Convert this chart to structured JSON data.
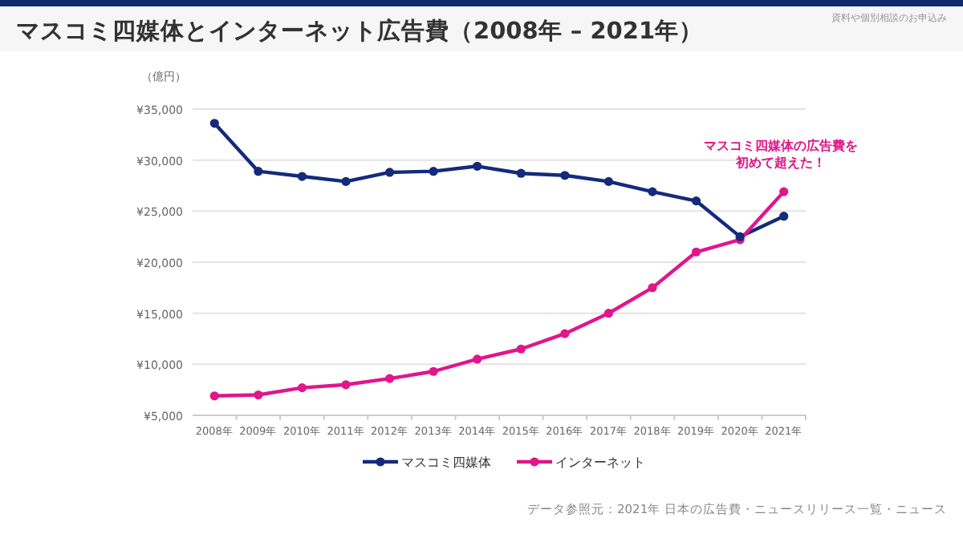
{
  "chart_data": {
    "type": "line",
    "title": "マスコミ四媒体とインターネット広告費（2008年 – 2021年）",
    "ylabel": "（億円）",
    "categories": [
      "2008年",
      "2009年",
      "2010年",
      "2011年",
      "2012年",
      "2013年",
      "2014年",
      "2015年",
      "2016年",
      "2017年",
      "2018年",
      "2019年",
      "2020年",
      "2021年"
    ],
    "series": [
      {
        "name": "マスコミ四媒体",
        "color": "#142a7c",
        "values": [
          33600,
          28900,
          28400,
          27900,
          28800,
          28900,
          29400,
          28700,
          28500,
          27900,
          26900,
          26000,
          22500,
          24500
        ]
      },
      {
        "name": "インターネット",
        "color": "#e0168c",
        "values": [
          6900,
          7000,
          7700,
          8000,
          8600,
          9300,
          10500,
          11500,
          13000,
          15000,
          17500,
          21000,
          22200,
          26900
        ]
      }
    ],
    "ylim": [
      5000,
      35000
    ],
    "yticks": [
      {
        "value": 5000,
        "label": "¥5,000"
      },
      {
        "value": 10000,
        "label": "¥10,000"
      },
      {
        "value": 15000,
        "label": "¥15,000"
      },
      {
        "value": 20000,
        "label": "¥20,000"
      },
      {
        "value": 25000,
        "label": "¥25,000"
      },
      {
        "value": 30000,
        "label": "¥30,000"
      },
      {
        "value": 35000,
        "label": "¥35,000"
      }
    ],
    "grid": "y",
    "legend": "bottom",
    "marker": "circle",
    "line_style": "solid",
    "annotations": [
      {
        "text": "マスコミ四媒体の広告費を初めて超えた！",
        "x": "2021年",
        "y": 26900
      },
      "資料や個別相談のお申込み",
      "データ参照元：2021年 日本の広告費・ニュースリリース一覧・ニュース"
    ]
  }
}
